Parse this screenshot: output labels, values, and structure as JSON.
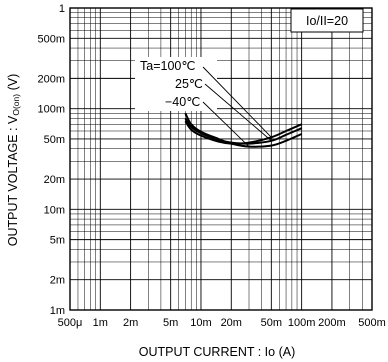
{
  "chart_data": {
    "type": "line",
    "title": "",
    "xlabel": "OUTPUT  CURRENT : Io (A)",
    "ylabel": "OUTPUT  VOLTAGE : VO(on) (V)",
    "xscale": "log",
    "yscale": "log",
    "xlim": [
      0.0005,
      0.5
    ],
    "ylim": [
      0.001,
      1
    ],
    "grid": true,
    "x_tick_labels": [
      "500μ",
      "1m",
      "2m",
      "5m",
      "10m",
      "20m",
      "50m",
      "100m",
      "200m",
      "500m"
    ],
    "y_tick_labels": [
      "1",
      "500m",
      "200m",
      "100m",
      "50m",
      "20m",
      "10m",
      "5m",
      "2m",
      "1m"
    ],
    "legend_box": "Io/II=20",
    "annotations": [
      "Ta=100℃",
      "25℃",
      "−40℃"
    ],
    "series": [
      {
        "name": "Ta=100℃",
        "x": [
          0.007,
          0.008,
          0.01,
          0.015,
          0.02,
          0.03,
          0.05,
          0.07,
          0.1
        ],
        "y": [
          0.075,
          0.062,
          0.054,
          0.047,
          0.045,
          0.046,
          0.052,
          0.06,
          0.07
        ]
      },
      {
        "name": "25℃",
        "x": [
          0.007,
          0.008,
          0.01,
          0.015,
          0.02,
          0.03,
          0.05,
          0.07,
          0.1
        ],
        "y": [
          0.08,
          0.066,
          0.057,
          0.049,
          0.046,
          0.045,
          0.048,
          0.055,
          0.064
        ]
      },
      {
        "name": "−40℃",
        "x": [
          0.007,
          0.008,
          0.01,
          0.015,
          0.02,
          0.03,
          0.05,
          0.07,
          0.1
        ],
        "y": [
          0.09,
          0.07,
          0.059,
          0.05,
          0.045,
          0.042,
          0.043,
          0.048,
          0.056
        ]
      }
    ]
  }
}
